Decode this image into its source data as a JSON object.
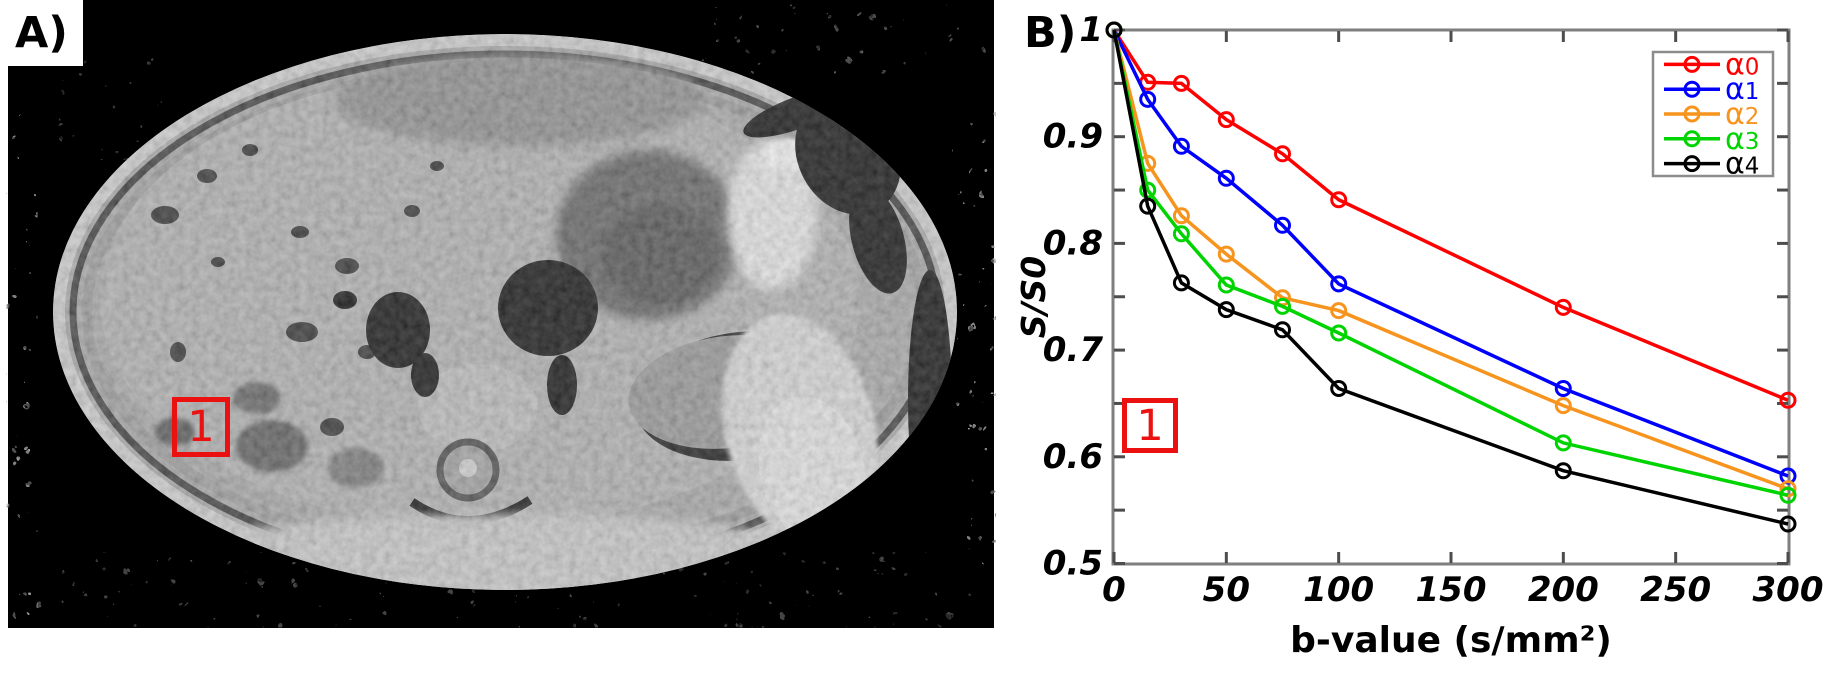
{
  "figure": {
    "panel_a": {
      "label": "A)",
      "roi_label": "1"
    },
    "panel_b": {
      "label": "B)",
      "roi_label": "1"
    }
  },
  "colors": {
    "roi_red": "#ec1111",
    "axis_gray": "#7f7f7f",
    "tick_gray": "#4d4d4d",
    "text_black": "#000000",
    "legend_border_gray": "#8c8c8c"
  },
  "chart_data": {
    "type": "line",
    "title": "",
    "xlabel": "b-value (s/mm²)",
    "ylabel": "S/S0",
    "x": [
      0,
      15,
      30,
      50,
      75,
      100,
      200,
      300
    ],
    "xlim": [
      0,
      300
    ],
    "ylim": [
      0.5,
      1
    ],
    "xticks": [
      0,
      50,
      100,
      150,
      200,
      250,
      300
    ],
    "yticks_labeled": [
      1,
      0.9,
      0.8,
      0.7,
      0.6,
      0.5
    ],
    "ytick_minor_step": 0.05,
    "grid": false,
    "marker": "o",
    "legend_position": "top-right",
    "series": [
      {
        "name": "α0",
        "color": "#ff0000",
        "values": [
          1.0,
          0.951,
          0.95,
          0.916,
          0.884,
          0.841,
          0.74,
          0.653
        ]
      },
      {
        "name": "α1",
        "color": "#0000ff",
        "values": [
          1.0,
          0.935,
          0.891,
          0.861,
          0.817,
          0.762,
          0.664,
          0.582
        ]
      },
      {
        "name": "α2",
        "color": "#f7941d",
        "values": [
          1.0,
          0.875,
          0.826,
          0.79,
          0.749,
          0.737,
          0.648,
          0.57
        ]
      },
      {
        "name": "α3",
        "color": "#00d400",
        "values": [
          1.0,
          0.85,
          0.809,
          0.761,
          0.741,
          0.716,
          0.613,
          0.564
        ]
      },
      {
        "name": "α4",
        "color": "#000000",
        "values": [
          1.0,
          0.835,
          0.763,
          0.738,
          0.719,
          0.664,
          0.587,
          0.537
        ]
      }
    ]
  }
}
